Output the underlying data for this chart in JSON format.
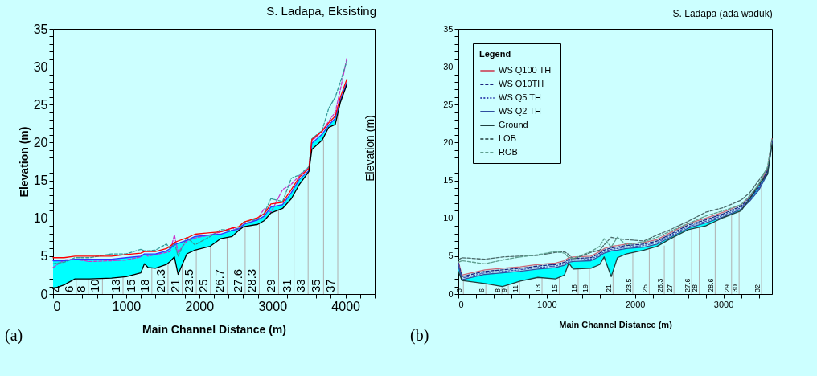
{
  "chart_data": [
    {
      "type": "line",
      "title": "S. Ladapa, Eksisting",
      "xlabel": "Main Channel Distance (m)",
      "ylabel": "Elevation (m)",
      "y2label": "Elevation (m)",
      "x": [
        0,
        150,
        300,
        500,
        800,
        1000,
        1200,
        1250,
        1300,
        1400,
        1550,
        1600,
        1660,
        1710,
        1830,
        1940,
        2150,
        2290,
        2450,
        2540,
        2610,
        2800,
        2890,
        2980,
        3140,
        3260,
        3365,
        3500,
        3540,
        3680,
        3770,
        3860,
        3930,
        4020
      ],
      "xlim": [
        0,
        4400
      ],
      "xticks": [
        0,
        {
          "value": 200,
          "label": null
        },
        {
          "value": 400,
          "label": null
        },
        {
          "value": 600,
          "label": null
        },
        {
          "value": 800,
          "label": null
        },
        1000,
        {
          "value": 1200,
          "label": null
        },
        {
          "value": 1400,
          "label": null
        },
        {
          "value": 1600,
          "label": null
        },
        {
          "value": 1800,
          "label": null
        },
        2000,
        {
          "value": 2200,
          "label": null
        },
        {
          "value": 2400,
          "label": null
        },
        {
          "value": 2600,
          "label": null
        },
        {
          "value": 2800,
          "label": null
        },
        3000,
        {
          "value": 3200,
          "label": null
        },
        {
          "value": 3400,
          "label": null
        },
        {
          "value": 3600,
          "label": null
        },
        {
          "value": 3800,
          "label": null
        },
        4000,
        {
          "value": 4200,
          "label": null
        },
        {
          "value": 4400,
          "label": null
        }
      ],
      "ylim": [
        0,
        35
      ],
      "yticks": [
        0,
        {
          "value": 1,
          "label": null
        },
        {
          "value": 2,
          "label": null
        },
        {
          "value": 3,
          "label": null
        },
        {
          "value": 4,
          "label": null
        },
        5,
        {
          "value": 6,
          "label": null
        },
        {
          "value": 7,
          "label": null
        },
        {
          "value": 8,
          "label": null
        },
        {
          "value": 9,
          "label": null
        },
        10,
        {
          "value": 11,
          "label": null
        },
        {
          "value": 12,
          "label": null
        },
        {
          "value": 13,
          "label": null
        },
        {
          "value": 14,
          "label": null
        },
        15,
        {
          "value": 16,
          "label": null
        },
        {
          "value": 17,
          "label": null
        },
        {
          "value": 18,
          "label": null
        },
        {
          "value": 19,
          "label": null
        },
        20,
        {
          "value": 21,
          "label": null
        },
        {
          "value": 22,
          "label": null
        },
        {
          "value": 23,
          "label": null
        },
        {
          "value": 24,
          "label": null
        },
        25,
        {
          "value": 26,
          "label": null
        },
        {
          "value": 27,
          "label": null
        },
        {
          "value": 28,
          "label": null
        },
        {
          "value": 29,
          "label": null
        },
        30,
        {
          "value": 31,
          "label": null
        },
        {
          "value": 32,
          "label": null
        },
        {
          "value": 33,
          "label": null
        },
        {
          "value": 34,
          "label": null
        },
        35
      ],
      "series": [
        {
          "color": "#cc33cc",
          "line_style": "dashed",
          "values": [
            3.5,
            4.5,
            4.6,
            4.3,
            4.4,
            4.5,
            4.9,
            5.3,
            5.0,
            5.2,
            5.5,
            5.6,
            7.8,
            5.5,
            7.0,
            7.4,
            7.8,
            8.2,
            8.7,
            8.5,
            9.2,
            9.9,
            11.3,
            10.8,
            13.8,
            14.5,
            15.6,
            16.7,
            20.2,
            21.5,
            22.8,
            24.0,
            27.0,
            31.2
          ]
        },
        {
          "color": "#339999",
          "line_style": "dashed",
          "values": [
            4.0,
            4.2,
            4.8,
            4.8,
            5.3,
            5.3,
            5.9,
            5.7,
            5.7,
            5.8,
            6.6,
            6.0,
            6.8,
            5.0,
            7.5,
            6.5,
            7.6,
            8.5,
            8.4,
            8.7,
            9.5,
            9.9,
            10.7,
            12.6,
            12.2,
            15.3,
            15.7,
            16.8,
            20.5,
            21.6,
            24.5,
            26.0,
            28.0,
            30.8
          ]
        },
        {
          "color": "#3333ff",
          "values": [
            4.4,
            4.4,
            4.6,
            4.6,
            4.6,
            4.8,
            5.0,
            5.3,
            5.3,
            5.3,
            5.7,
            6.0,
            6.5,
            6.7,
            7.1,
            7.6,
            7.8,
            7.9,
            8.4,
            8.6,
            9.2,
            9.8,
            10.3,
            11.5,
            11.8,
            13.4,
            15.1,
            16.3,
            19.9,
            21.1,
            22.3,
            23.2,
            25.6,
            28.0
          ],
          "upper": [
            4.4,
            4.4,
            4.6,
            4.6,
            4.6,
            4.8,
            5.0,
            5.3,
            5.3,
            5.3,
            5.7,
            6.0,
            6.5,
            6.7,
            7.1,
            7.6,
            7.8,
            7.9,
            8.4,
            8.6,
            9.2,
            9.8,
            10.3,
            11.5,
            11.8,
            13.4,
            15.1,
            16.3,
            19.9,
            21.1,
            22.3,
            23.2,
            25.6,
            28.0
          ],
          "lower": [
            0.7,
            1.2,
            2.0,
            2.0,
            2.1,
            2.3,
            2.8,
            4.0,
            3.5,
            3.4,
            3.9,
            4.3,
            4.9,
            2.6,
            5.3,
            5.8,
            6.3,
            7.3,
            7.6,
            8.4,
            8.9,
            9.2,
            9.7,
            10.7,
            11.3,
            12.6,
            14.4,
            16.2,
            19.1,
            20.3,
            22.0,
            22.4,
            25.3,
            27.7
          ]
        },
        {
          "color": "#ff0000",
          "values": [
            4.8,
            4.8,
            5.0,
            5.0,
            5.0,
            5.2,
            5.4,
            5.6,
            5.6,
            5.6,
            6.0,
            6.3,
            6.8,
            7.0,
            7.4,
            7.9,
            8.1,
            8.2,
            8.7,
            8.9,
            9.5,
            10.1,
            10.6,
            11.9,
            12.1,
            13.8,
            15.4,
            16.6,
            20.4,
            21.5,
            22.6,
            23.5,
            26.0,
            28.4
          ]
        },
        {
          "color": "#000000",
          "values": [
            0.7,
            1.2,
            2.0,
            2.0,
            2.1,
            2.3,
            2.8,
            4.0,
            3.5,
            3.4,
            3.9,
            4.3,
            4.9,
            2.6,
            5.3,
            5.8,
            6.3,
            7.3,
            7.6,
            8.4,
            8.9,
            9.2,
            9.7,
            10.7,
            11.3,
            12.6,
            14.4,
            16.2,
            19.1,
            20.3,
            22.0,
            22.4,
            25.3,
            27.7
          ]
        }
      ],
      "annotations": [
        "(a)",
        {
          "text": "4",
          "x": 148,
          "y": 1.2
        },
        {
          "text": "6",
          "x": 317,
          "y": 2.0
        },
        {
          "text": "8",
          "x": 482,
          "y": 2.0
        },
        {
          "text": "10",
          "x": 675,
          "y": 2.1
        },
        {
          "text": "13",
          "x": 957,
          "y": 2.3
        },
        {
          "text": "15",
          "x": 1161,
          "y": 2.7
        },
        {
          "text": "18",
          "x": 1351,
          "y": 3.4
        },
        {
          "text": "20.3",
          "x": 1572,
          "y": 4.0
        },
        {
          "text": "21",
          "x": 1766,
          "y": 4.0
        },
        {
          "text": "23.5",
          "x": 1959,
          "y": 5.9
        },
        {
          "text": "25",
          "x": 2153,
          "y": 6.3
        },
        {
          "text": "26.7",
          "x": 2381,
          "y": 7.5
        },
        {
          "text": "27.6",
          "x": 2628,
          "y": 8.9
        },
        {
          "text": "28.3",
          "x": 2821,
          "y": 9.3
        },
        {
          "text": "29",
          "x": 3085,
          "y": 11.1
        },
        {
          "text": "31",
          "x": 3296,
          "y": 13.2
        },
        {
          "text": "33",
          "x": 3489,
          "y": 16.1
        },
        {
          "text": "35",
          "x": 3700,
          "y": 20.4
        },
        {
          "text": "37",
          "x": 3894,
          "y": 23.8
        }
      ]
    },
    {
      "type": "line",
      "title": "S. Ladapa (ada waduk)",
      "xlabel": "Main Channel Distance (m)",
      "legend": "top left",
      "legend_title": "Legend",
      "x": [
        0,
        40,
        300,
        500,
        700,
        900,
        1100,
        1200,
        1250,
        1300,
        1500,
        1600,
        1650,
        1730,
        1800,
        1900,
        2100,
        2250,
        2400,
        2600,
        2800,
        3000,
        3200,
        3300,
        3400,
        3500,
        3550
      ],
      "xlim": [
        0,
        3550
      ],
      "xticks": [
        0,
        {
          "value": 200,
          "label": null
        },
        {
          "value": 400,
          "label": null
        },
        {
          "value": 600,
          "label": null
        },
        {
          "value": 800,
          "label": null
        },
        1000,
        {
          "value": 1200,
          "label": null
        },
        {
          "value": 1400,
          "label": null
        },
        {
          "value": 1600,
          "label": null
        },
        {
          "value": 1800,
          "label": null
        },
        2000,
        {
          "value": 2200,
          "label": null
        },
        {
          "value": 2400,
          "label": null
        },
        {
          "value": 2600,
          "label": null
        },
        {
          "value": 2800,
          "label": null
        },
        3000,
        {
          "value": 3200,
          "label": null
        },
        {
          "value": 3400,
          "label": null
        }
      ],
      "ylim": [
        0,
        35
      ],
      "yticks": [
        0,
        {
          "value": 1,
          "label": null
        },
        {
          "value": 2,
          "label": null
        },
        {
          "value": 3,
          "label": null
        },
        {
          "value": 4,
          "label": null
        },
        5,
        {
          "value": 6,
          "label": null
        },
        {
          "value": 7,
          "label": null
        },
        {
          "value": 8,
          "label": null
        },
        {
          "value": 9,
          "label": null
        },
        10,
        {
          "value": 11,
          "label": null
        },
        {
          "value": 12,
          "label": null
        },
        {
          "value": 13,
          "label": null
        },
        {
          "value": 14,
          "label": null
        },
        15,
        {
          "value": 16,
          "label": null
        },
        {
          "value": 17,
          "label": null
        },
        {
          "value": 18,
          "label": null
        },
        {
          "value": 19,
          "label": null
        },
        20,
        {
          "value": 21,
          "label": null
        },
        {
          "value": 22,
          "label": null
        },
        {
          "value": 23,
          "label": null
        },
        {
          "value": 24,
          "label": null
        },
        25,
        {
          "value": 26,
          "label": null
        },
        {
          "value": 27,
          "label": null
        },
        {
          "value": 28,
          "label": null
        },
        {
          "value": 29,
          "label": null
        },
        30,
        {
          "value": 31,
          "label": null
        },
        {
          "value": 32,
          "label": null
        },
        {
          "value": 33,
          "label": null
        },
        {
          "value": 34,
          "label": null
        },
        35
      ],
      "series": [
        {
          "name": "WS  Q100 TH",
          "color": "#cc6677",
          "values": [
            4.3,
            2.5,
            3.2,
            3.4,
            3.6,
            3.9,
            4.1,
            4.4,
            4.8,
            4.9,
            5.0,
            5.6,
            6.0,
            6.3,
            6.4,
            6.6,
            6.8,
            7.2,
            8.1,
            9.3,
            10.0,
            10.8,
            11.8,
            12.9,
            14.3,
            16.5,
            20.5
          ]
        },
        {
          "name": "WS  Q10TH",
          "color": "#1a237e",
          "line_style": "dashed",
          "values": [
            4.1,
            2.3,
            3.0,
            3.2,
            3.4,
            3.7,
            3.9,
            4.2,
            4.6,
            4.7,
            4.8,
            5.4,
            5.8,
            6.1,
            6.2,
            6.4,
            6.6,
            7.0,
            7.9,
            9.1,
            9.8,
            10.6,
            11.6,
            12.7,
            14.1,
            16.3,
            20.3
          ]
        },
        {
          "name": "WS  Q5 TH",
          "color": "#3f51b5",
          "line_style": "dotted",
          "values": [
            3.9,
            2.1,
            2.8,
            3.0,
            3.2,
            3.5,
            3.7,
            4.0,
            4.4,
            4.5,
            4.6,
            5.2,
            5.6,
            5.9,
            6.0,
            6.2,
            6.4,
            6.8,
            7.7,
            8.9,
            9.6,
            10.4,
            11.4,
            12.5,
            13.9,
            16.1,
            20.1
          ]
        },
        {
          "name": "WS  Q2 TH",
          "color": "#2f4f9f",
          "values": [
            3.7,
            1.9,
            2.6,
            2.8,
            3.0,
            3.3,
            3.5,
            3.8,
            4.2,
            4.3,
            4.4,
            5.0,
            5.4,
            5.7,
            5.8,
            6.0,
            6.2,
            6.6,
            7.5,
            8.7,
            9.4,
            10.2,
            11.2,
            12.3,
            13.7,
            15.9,
            19.9
          ],
          "upper": [
            3.7,
            1.9,
            2.6,
            2.8,
            3.0,
            3.3,
            3.5,
            3.8,
            4.2,
            4.3,
            4.4,
            5.0,
            5.4,
            5.7,
            5.8,
            6.0,
            6.2,
            6.6,
            7.5,
            8.7,
            9.4,
            10.2,
            11.2,
            12.3,
            13.7,
            15.9,
            19.9
          ],
          "lower": [
            3.0,
            1.8,
            1.4,
            1.0,
            1.7,
            2.2,
            2.0,
            2.5,
            4.1,
            3.3,
            3.4,
            3.9,
            4.9,
            2.3,
            4.8,
            5.3,
            5.8,
            6.3,
            7.3,
            8.5,
            9.0,
            10.1,
            11.0,
            12.6,
            14.5,
            15.8,
            19.8
          ]
        },
        {
          "name": "Ground",
          "color": "#1f3f3f",
          "values": [
            3.0,
            1.8,
            1.4,
            1.0,
            1.7,
            2.2,
            2.0,
            2.5,
            4.1,
            3.3,
            3.4,
            3.9,
            4.9,
            2.3,
            4.8,
            5.3,
            5.8,
            6.3,
            7.3,
            8.5,
            9.0,
            10.1,
            11.0,
            12.6,
            14.5,
            15.8,
            19.8
          ]
        },
        {
          "name": "LOB",
          "color": "#4a6a6a",
          "line_style": "dashed",
          "values": [
            4.5,
            4.8,
            4.6,
            4.9,
            5.0,
            5.1,
            5.5,
            5.6,
            5.2,
            4.6,
            5.5,
            5.8,
            6.5,
            7.5,
            7.3,
            7.2,
            7.0,
            7.8,
            8.5,
            9.6,
            10.8,
            11.4,
            12.4,
            13.4,
            15.0,
            16.6,
            null
          ]
        },
        {
          "name": "ROB",
          "color": "#5f9f8f",
          "line_style": "dashed",
          "values": [
            4.2,
            4.4,
            4.0,
            4.5,
            4.9,
            5.2,
            5.6,
            5.4,
            4.8,
            4.7,
            5.6,
            6.3,
            7.3,
            6.2,
            7.5,
            6.5,
            6.9,
            7.5,
            8.3,
            9.3,
            10.3,
            11.0,
            11.8,
            13.0,
            14.5,
            16.8,
            20.4
          ]
        }
      ],
      "annotations": [
        "(b)",
        {
          "text": "3",
          "x": 57,
          "y": 1.8
        },
        {
          "text": "6",
          "x": 311,
          "y": 1.4
        },
        {
          "text": "8",
          "x": 492,
          "y": 1.0
        },
        {
          "text": "9",
          "x": 565,
          "y": 1.2
        },
        {
          "text": "11",
          "x": 692,
          "y": 1.7
        },
        {
          "text": "13",
          "x": 947,
          "y": 2.2
        },
        {
          "text": "15",
          "x": 1144,
          "y": 2.2
        },
        {
          "text": "18",
          "x": 1356,
          "y": 3.3
        },
        {
          "text": "19",
          "x": 1483,
          "y": 3.4
        },
        {
          "text": "21",
          "x": 1751,
          "y": 2.8
        },
        {
          "text": "23.5",
          "x": 1975,
          "y": 5.5
        },
        {
          "text": "25",
          "x": 2161,
          "y": 5.9
        },
        {
          "text": "26.3",
          "x": 2331,
          "y": 6.4
        },
        {
          "text": "27",
          "x": 2441,
          "y": 7.5
        },
        {
          "text": "27.6",
          "x": 2641,
          "y": 8.5
        },
        {
          "text": "28",
          "x": 2726,
          "y": 8.8
        },
        {
          "text": "28.6",
          "x": 2907,
          "y": 9.5
        },
        {
          "text": "29",
          "x": 3093,
          "y": 10.5
        },
        {
          "text": "30",
          "x": 3178,
          "y": 10.9
        },
        {
          "text": "32",
          "x": 3432,
          "y": 14.6
        }
      ]
    }
  ]
}
